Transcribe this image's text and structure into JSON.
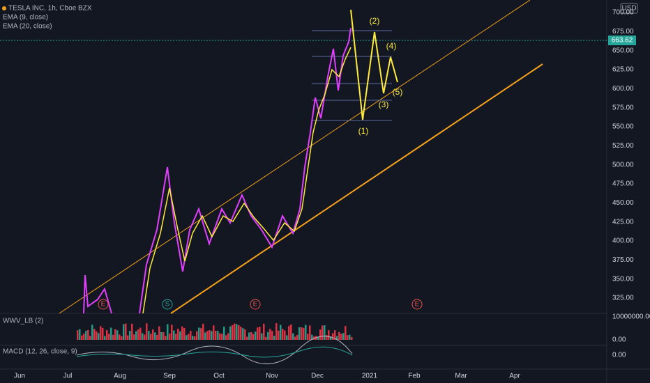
{
  "header": {
    "symbol": "TESLA INC, 1h, Cboe BZX",
    "ema1": "EMA (9, close)",
    "ema2": "EMA (20, close)",
    "currency": "USD"
  },
  "price_axis": {
    "labels": [
      "700.00",
      "675.00",
      "650.00",
      "625.00",
      "600.00",
      "575.00",
      "550.00",
      "525.00",
      "500.00",
      "475.00",
      "450.00",
      "425.00",
      "400.00",
      "375.00",
      "350.00",
      "325.00"
    ],
    "last_price": "663.62"
  },
  "waves": [
    "(1)",
    "(2)",
    "(3)",
    "(4)",
    "(5)"
  ],
  "events": [
    "E",
    "S",
    "E",
    "E"
  ],
  "volume_pane": {
    "title": "WWV_LB (2)",
    "labels": [
      "10000000.00",
      "0.00"
    ]
  },
  "macd_pane": {
    "title": "MACD (12, 26, close, 9)",
    "labels": [
      "0.00"
    ]
  },
  "time_axis": [
    "Jun",
    "Jul",
    "Aug",
    "Sep",
    "Oct",
    "Nov",
    "Dec",
    "2021",
    "Feb",
    "Mar",
    "Apr"
  ]
}
